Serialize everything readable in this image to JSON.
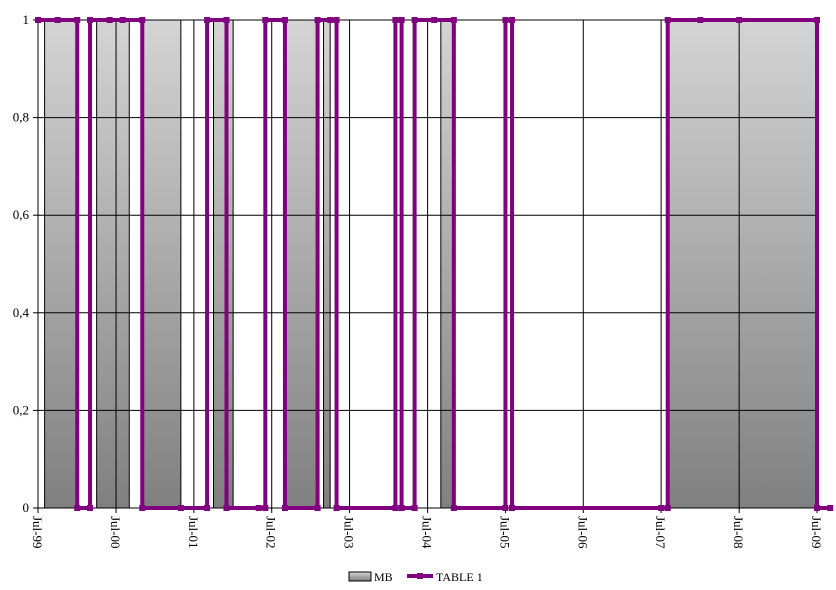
{
  "chart_data": {
    "type": "bar+line",
    "title": "",
    "xlabel": "",
    "ylabel": "",
    "x_axis": {
      "type": "date",
      "range": [
        "1999-07-01",
        "2009-07-01"
      ],
      "ticks": [
        {
          "date": "1999-07-01",
          "label": "Jul-99"
        },
        {
          "date": "2000-07-01",
          "label": "Jul-00"
        },
        {
          "date": "2001-07-01",
          "label": "Jul-01"
        },
        {
          "date": "2002-07-01",
          "label": "Jul-02"
        },
        {
          "date": "2003-07-01",
          "label": "Jul-03"
        },
        {
          "date": "2004-07-01",
          "label": "Jul-04"
        },
        {
          "date": "2005-07-01",
          "label": "Jul-05"
        },
        {
          "date": "2006-07-01",
          "label": "Jul-06"
        },
        {
          "date": "2007-07-01",
          "label": "Jul-07"
        },
        {
          "date": "2008-07-01",
          "label": "Jul-08"
        },
        {
          "date": "2009-07-01",
          "label": "Jul-09"
        }
      ],
      "label_orientation": "rotated-90"
    },
    "y_axis": {
      "range": [
        0,
        1
      ],
      "ticks": [
        {
          "value": 0,
          "label": "0"
        },
        {
          "value": 0.2,
          "label": "0,2"
        },
        {
          "value": 0.4,
          "label": "0,4"
        },
        {
          "value": 0.6,
          "label": "0,6"
        },
        {
          "value": 0.8,
          "label": "0,8"
        },
        {
          "value": 1,
          "label": "1"
        }
      ]
    },
    "grid": true,
    "legend_position": "bottom-center",
    "series": [
      {
        "name": "MB",
        "type": "area",
        "fill": "gradient",
        "gradient_colors": [
          "#d4d4d4",
          "#808080"
        ],
        "value_when_active": 1,
        "active_periods": [
          {
            "start": "1999-08-01",
            "end": "2000-01-01"
          },
          {
            "start": "2000-04-01",
            "end": "2000-09-01"
          },
          {
            "start": "2000-11-01",
            "end": "2001-05-01"
          },
          {
            "start": "2001-10-01",
            "end": "2002-01-01"
          },
          {
            "start": "2002-09-01",
            "end": "2003-02-01"
          },
          {
            "start": "2003-03-01",
            "end": "2003-04-01"
          },
          {
            "start": "2004-09-01",
            "end": "2004-11-01"
          },
          {
            "start": "2007-08-01",
            "end": "2009-07-01"
          }
        ]
      },
      {
        "name": "TABLE 1",
        "type": "line",
        "color": "#800080",
        "marker": "square",
        "x": [
          "1999-07-01",
          "1999-10-01",
          "2000-01-01",
          "2000-01-01",
          "2000-03-01",
          "2000-03-01",
          "2000-06-01",
          "2000-08-01",
          "2000-11-01",
          "2000-11-01",
          "2001-05-01",
          "2001-09-01",
          "2001-09-01",
          "2001-12-01",
          "2001-12-01",
          "2002-05-01",
          "2002-06-01",
          "2002-06-01",
          "2002-09-01",
          "2002-09-01",
          "2003-02-01",
          "2003-02-01",
          "2003-04-01",
          "2003-05-01",
          "2003-05-01",
          "2004-02-01",
          "2004-02-01",
          "2004-03-01",
          "2004-03-01",
          "2004-05-01",
          "2004-05-01",
          "2004-08-01",
          "2004-11-01",
          "2004-11-01",
          "2005-07-01",
          "2005-07-01",
          "2005-08-01",
          "2005-08-01",
          "2007-07-01",
          "2007-08-01",
          "2007-08-01",
          "2008-01-01",
          "2008-07-01",
          "2009-07-01",
          "2009-07-01",
          "2009-09-01"
        ],
        "values": [
          1,
          1,
          1,
          0,
          0,
          1,
          1,
          1,
          1,
          0,
          0,
          0,
          1,
          1,
          0,
          0,
          0,
          1,
          1,
          0,
          0,
          1,
          1,
          1,
          0,
          0,
          1,
          1,
          0,
          0,
          1,
          1,
          1,
          0,
          0,
          1,
          1,
          0,
          0,
          0,
          1,
          1,
          1,
          1,
          0,
          0
        ]
      }
    ]
  }
}
